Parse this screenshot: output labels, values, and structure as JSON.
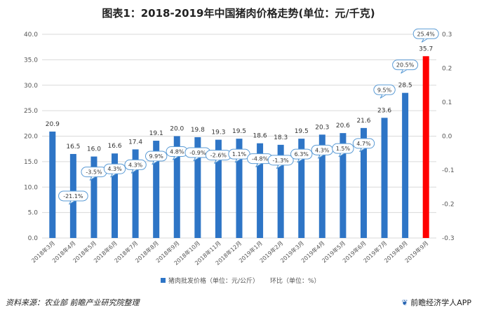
{
  "title": "图表1：2018-2019年中国猪肉价格走势(单位：元/千克)",
  "source": "资料来源：农业部 前瞻产业研究院整理",
  "brand": "前瞻经济学人APP",
  "brand_icon": "leaf-logo-icon",
  "colors": {
    "bar": "#2e75c6",
    "bar_highlight": "#ff0000",
    "grid": "#d9d9d9",
    "callout_border": "#5b9bd5"
  },
  "chart_data": {
    "type": "bar",
    "categories": [
      "2018年3月",
      "2018年4月",
      "2018年5月",
      "2018年6月",
      "2018年7月",
      "2018年8月",
      "2018年9月",
      "2018年10月",
      "2018年11月",
      "2018年12月",
      "2019年1月",
      "2019年2月",
      "2019年3月",
      "2019年4月",
      "2019年5月",
      "2019年6月",
      "2019年7月",
      "2019年8月",
      "2019年9月"
    ],
    "series": [
      {
        "name": "猪肉批发价格（单位：元/公斤）",
        "axis": "left",
        "values": [
          20.9,
          16.5,
          16.0,
          16.6,
          17.4,
          19.1,
          20.0,
          19.8,
          19.3,
          19.5,
          18.6,
          18.3,
          19.5,
          20.3,
          20.6,
          21.6,
          23.6,
          28.5,
          35.7
        ],
        "labels": [
          "20.9",
          "16.5",
          "16.0",
          "16.6",
          "17.4",
          "19.1",
          "20.0",
          "19.8",
          "19.3",
          "19.5",
          "18.6",
          "18.3",
          "19.5",
          "20.3",
          "20.6",
          "21.6",
          "23.6",
          "28.5",
          "35.7"
        ]
      },
      {
        "name": "环比（单位：%）",
        "axis": "right",
        "values": [
          null,
          -21.1,
          -3.5,
          4.3,
          4.3,
          9.9,
          4.8,
          -0.9,
          -2.6,
          1.1,
          -4.8,
          -1.3,
          6.3,
          4.3,
          1.5,
          4.7,
          9.5,
          20.5,
          25.4
        ],
        "labels": [
          "",
          "-21.1%",
          "-3.5%",
          "4.3%",
          "4.3%",
          "9.9%",
          "4.8%",
          "-0.9%",
          "-2.6%",
          "1.1%",
          "-4.8%",
          "-1.3%",
          "6.3%",
          "4.3%",
          "1.5%",
          "4.7%",
          "9.5%",
          "20.5%",
          "25.4%"
        ]
      }
    ],
    "highlight_index": 18,
    "ylim": [
      0,
      40
    ],
    "yticks": [
      "0.0",
      "5.0",
      "10.0",
      "15.0",
      "20.0",
      "25.0",
      "30.0",
      "35.0",
      "40.0"
    ],
    "y2lim": [
      -0.3,
      0.3
    ],
    "y2ticks": [
      "-0.3",
      "-0.2",
      "-0.1",
      "0.0",
      "0.1",
      "0.2",
      "0.3"
    ],
    "grid": true,
    "legend_position": "bottom"
  }
}
